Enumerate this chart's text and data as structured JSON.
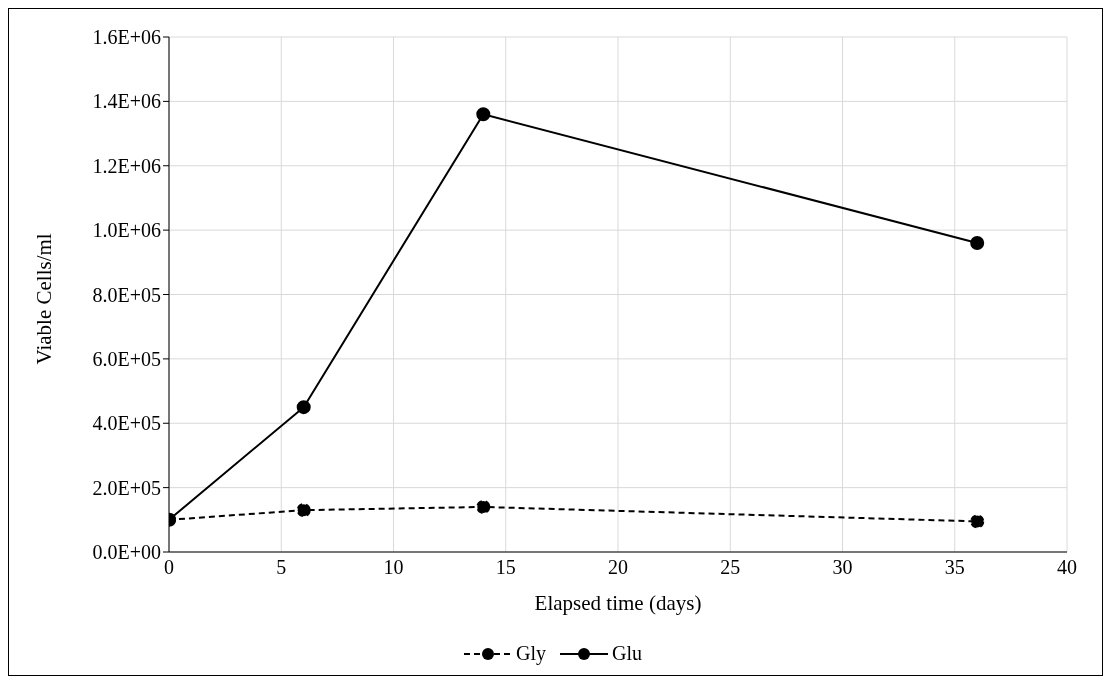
{
  "chart_data": {
    "type": "line",
    "xlabel": "Elapsed time (days)",
    "ylabel": "Viable Cells/ml",
    "x": [
      0,
      6,
      14,
      36
    ],
    "series": [
      {
        "name": "Gly",
        "color": "#000000",
        "line_style": "dashed",
        "values": [
          100000,
          130000,
          140000,
          95000
        ]
      },
      {
        "name": "Glu",
        "color": "#000000",
        "line_style": "solid",
        "values": [
          100000,
          450000,
          1360000,
          960000
        ]
      }
    ],
    "xlim": [
      0,
      40
    ],
    "xticks": [
      0,
      5,
      10,
      15,
      20,
      25,
      30,
      35,
      40
    ],
    "ylim": [
      0,
      1600000
    ],
    "yticks": [
      {
        "value": 0,
        "label": "0.0E+00"
      },
      {
        "value": 200000,
        "label": "2.0E+05"
      },
      {
        "value": 400000,
        "label": "4.0E+05"
      },
      {
        "value": 600000,
        "label": "6.0E+05"
      },
      {
        "value": 800000,
        "label": "8.0E+05"
      },
      {
        "value": 1000000,
        "label": "1.0E+06"
      },
      {
        "value": 1200000,
        "label": "1.2E+06"
      },
      {
        "value": 1400000,
        "label": "1.4E+06"
      },
      {
        "value": 1600000,
        "label": "1.6E+06"
      }
    ],
    "grid": true,
    "legend": "bottom",
    "marker": "circle"
  }
}
